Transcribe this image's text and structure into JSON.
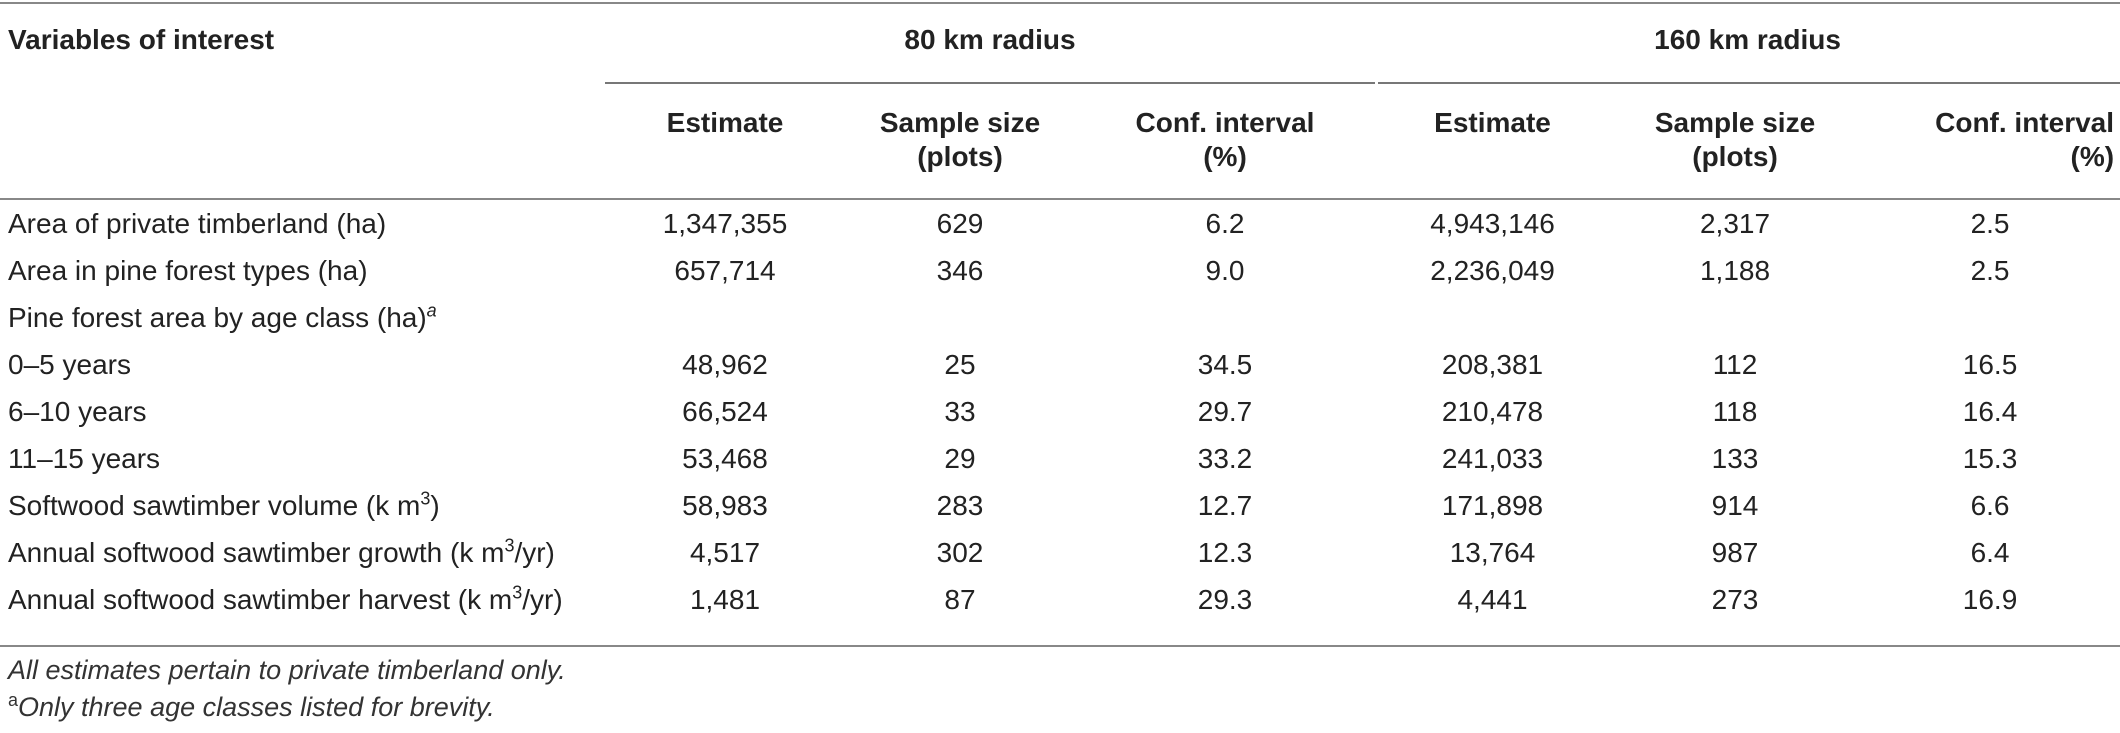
{
  "table": {
    "header": {
      "variables_label": "Variables of interest",
      "group_80": "80 km radius",
      "group_160": "160 km radius",
      "col_estimate": "Estimate",
      "col_sample_l1": "Sample size",
      "col_sample_l2": "(plots)",
      "col_conf_l1": "Conf. interval",
      "col_conf_l2": "(%)"
    },
    "rows": [
      {
        "label": "Area of private timberland (ha)",
        "e80": "1,347,355",
        "n80": "629",
        "ci80": "6.2",
        "e160": "4,943,146",
        "n160": "2,317",
        "ci160": "2.5"
      },
      {
        "label": "Area in pine forest types (ha)",
        "e80": "657,714",
        "n80": "346",
        "ci80": "9.0",
        "e160": "2,236,049",
        "n160": "1,188",
        "ci160": "2.5"
      },
      {
        "label": "Pine forest area by age class (ha)",
        "sup": "a",
        "e80": "",
        "n80": "",
        "ci80": "",
        "e160": "",
        "n160": "",
        "ci160": ""
      },
      {
        "label": "0–5 years",
        "e80": "48,962",
        "n80": "25",
        "ci80": "34.5",
        "e160": "208,381",
        "n160": "112",
        "ci160": "16.5"
      },
      {
        "label": "6–10 years",
        "e80": "66,524",
        "n80": "33",
        "ci80": "29.7",
        "e160": "210,478",
        "n160": "118",
        "ci160": "16.4"
      },
      {
        "label": "11–15 years",
        "e80": "53,468",
        "n80": "29",
        "ci80": "33.2",
        "e160": "241,033",
        "n160": "133",
        "ci160": "15.3"
      },
      {
        "label_pre": "Softwood sawtimber volume (k m",
        "label_sup": "3",
        "label_post": ")",
        "e80": "58,983",
        "n80": "283",
        "ci80": "12.7",
        "e160": "171,898",
        "n160": "914",
        "ci160": "6.6"
      },
      {
        "label_pre": "Annual softwood sawtimber growth (k m",
        "label_sup": "3",
        "label_post": "/yr)",
        "e80": "4,517",
        "n80": "302",
        "ci80": "12.3",
        "e160": "13,764",
        "n160": "987",
        "ci160": "6.4"
      },
      {
        "label_pre": "Annual softwood sawtimber harvest (k m",
        "label_sup": "3",
        "label_post": "/yr)",
        "e80": "1,481",
        "n80": "87",
        "ci80": "29.3",
        "e160": "4,441",
        "n160": "273",
        "ci160": "16.9"
      }
    ]
  },
  "footnotes": {
    "note1": "All estimates pertain to private timberland only.",
    "note2_marker": "a",
    "note2": "Only three age classes listed for brevity."
  }
}
